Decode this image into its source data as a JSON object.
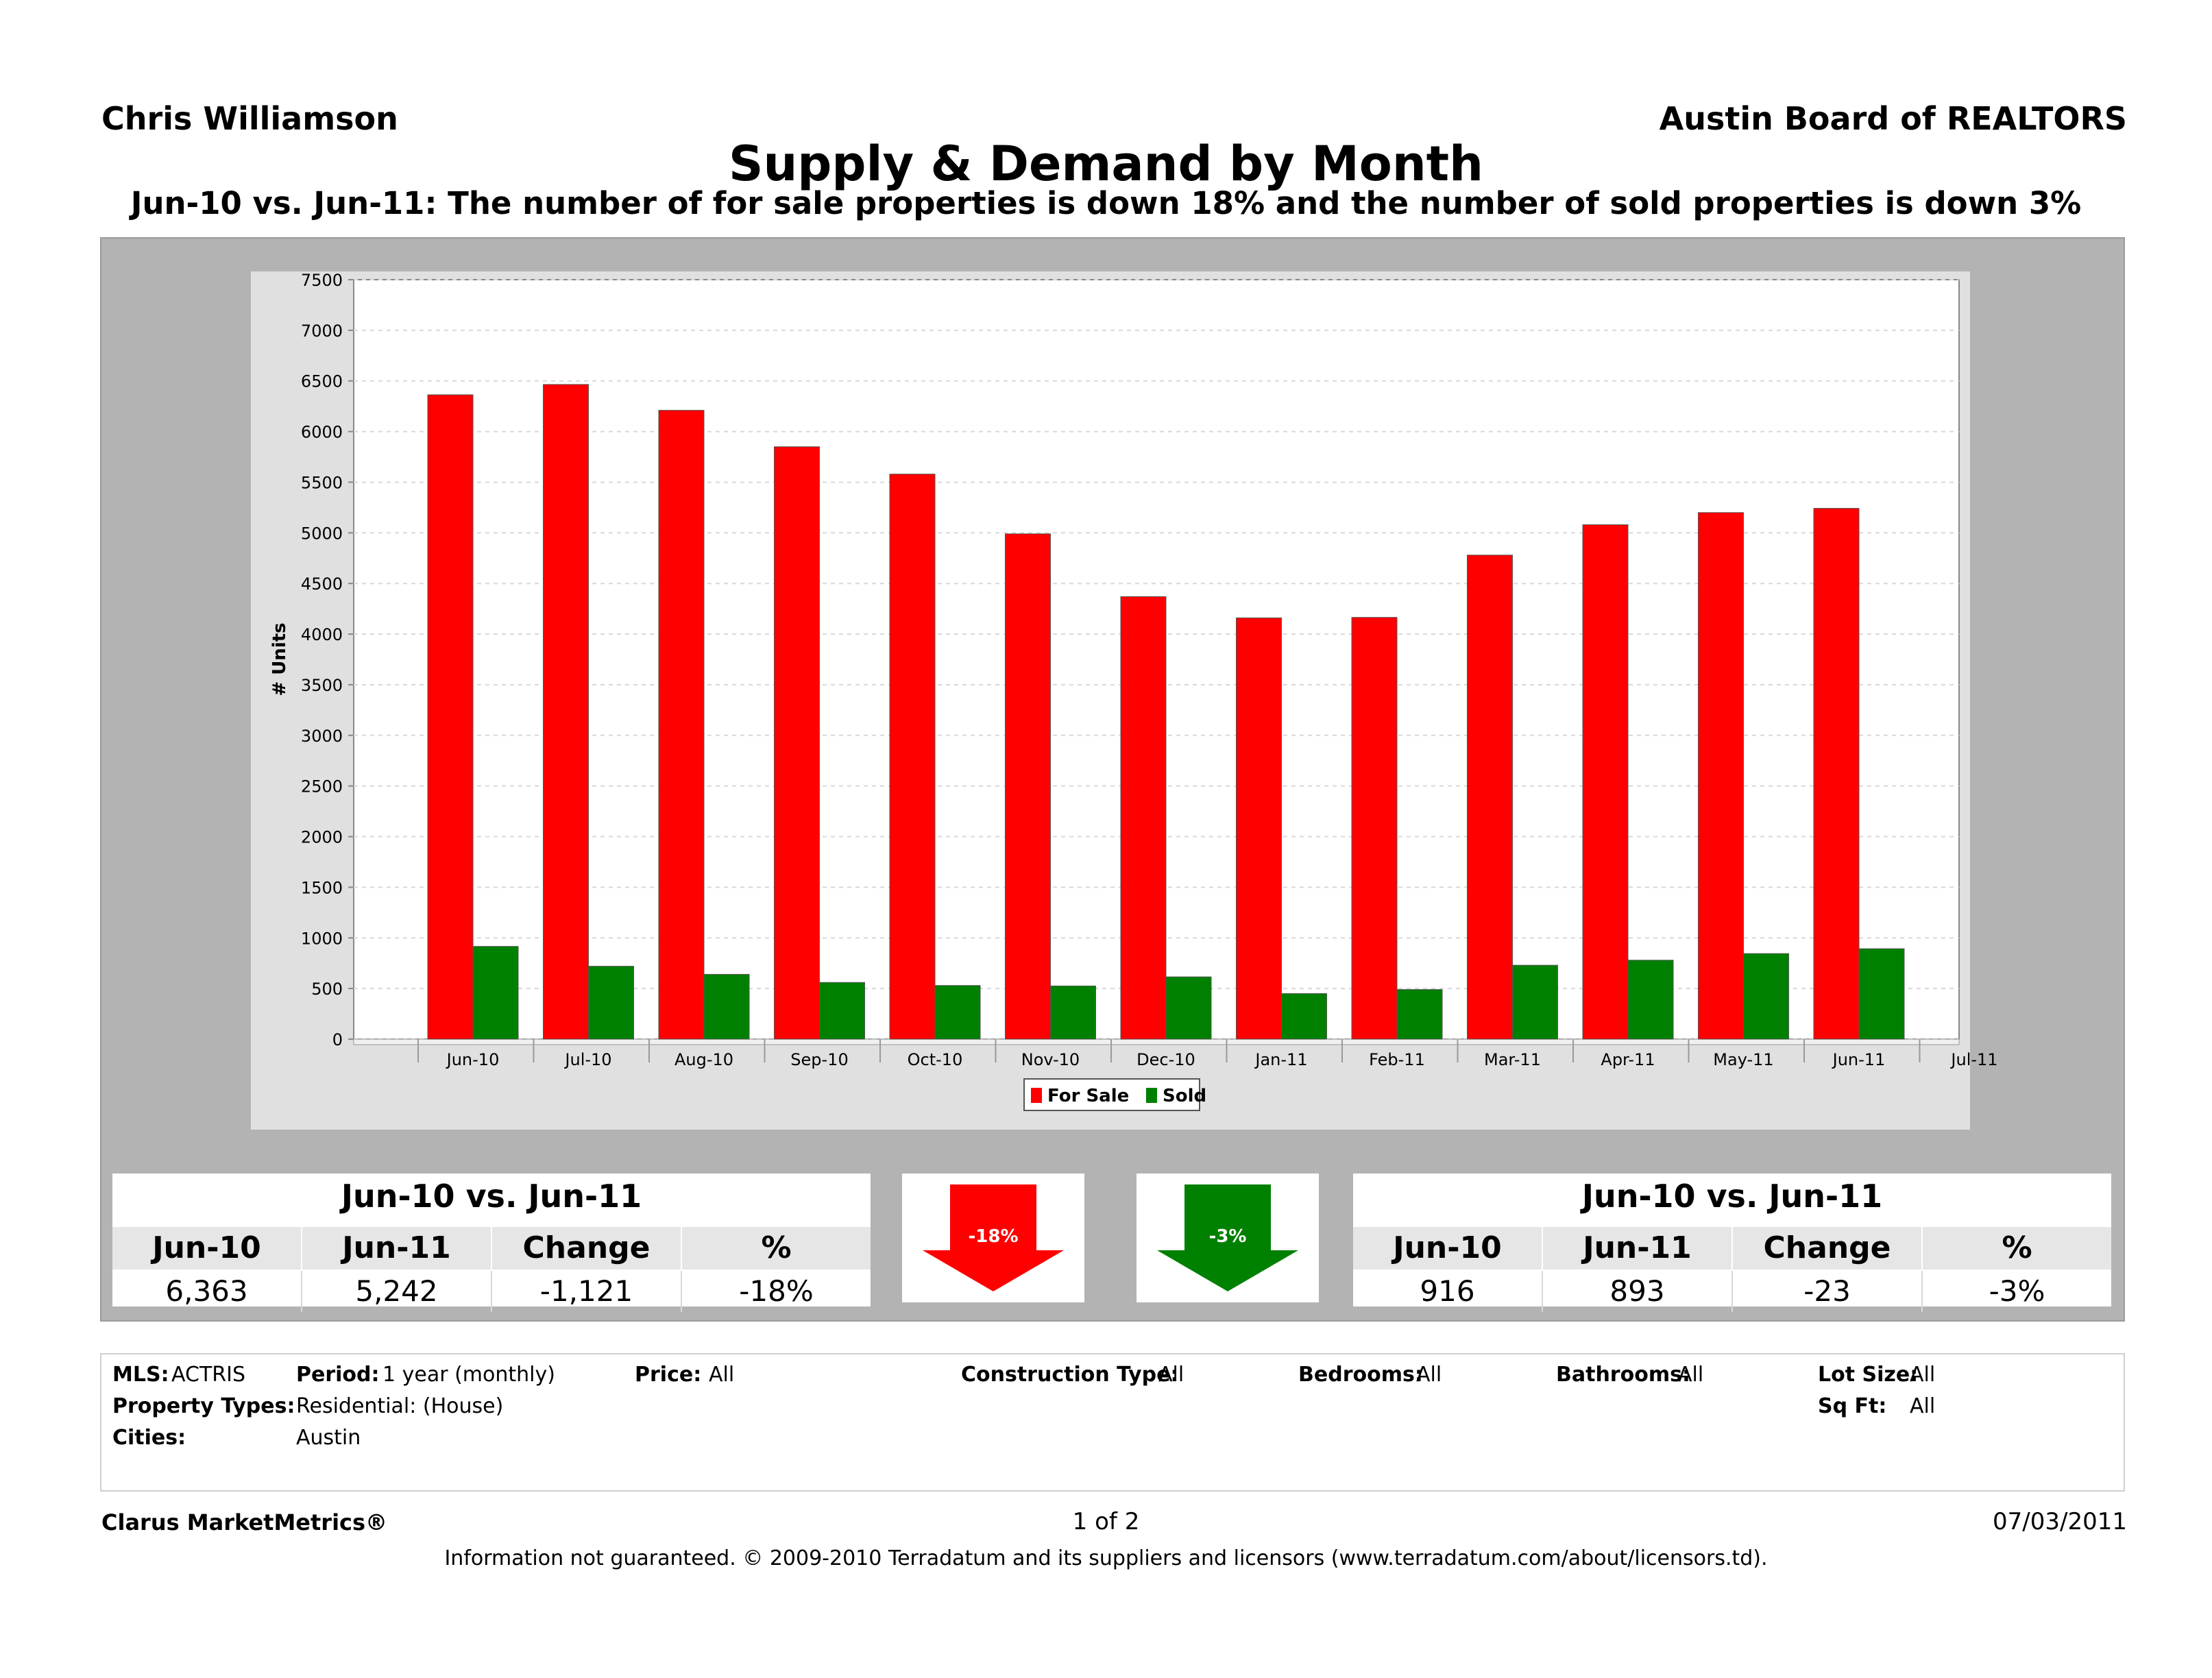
{
  "header": {
    "agent": "Chris Williamson",
    "board": "Austin Board of REALTORS",
    "title": "Supply & Demand by Month",
    "subtitle": "Jun-10 vs. Jun-11:  The number of for sale properties is down 18% and the number of sold properties is down 3%"
  },
  "chart_data": {
    "type": "bar",
    "ylabel": "# Units",
    "ylim": [
      0,
      7500
    ],
    "yticks": [
      0,
      500,
      1000,
      1500,
      2000,
      2500,
      3000,
      3500,
      4000,
      4500,
      5000,
      5500,
      6000,
      6500,
      7000,
      7500
    ],
    "categories": [
      "Jun-10",
      "Jul-10",
      "Aug-10",
      "Sep-10",
      "Oct-10",
      "Nov-10",
      "Dec-10",
      "Jan-11",
      "Feb-11",
      "Mar-11",
      "Apr-11",
      "May-11",
      "Jun-11",
      "Jul-11"
    ],
    "series": [
      {
        "name": "For Sale",
        "color": "#ff0000",
        "values": [
          6363,
          6465,
          6210,
          5850,
          5580,
          4990,
          4370,
          4160,
          4165,
          4780,
          5080,
          5200,
          5242,
          null
        ]
      },
      {
        "name": "Sold",
        "color": "#008000",
        "values": [
          916,
          720,
          640,
          560,
          530,
          525,
          615,
          450,
          490,
          730,
          780,
          845,
          893,
          null
        ]
      }
    ],
    "grid": true,
    "legend": "bottom-center"
  },
  "stats_left": {
    "title": "Jun-10 vs. Jun-11",
    "headers": [
      "Jun-10",
      "Jun-11",
      "Change",
      "%"
    ],
    "values": [
      "6,363",
      "5,242",
      "-1,121",
      "-18%"
    ]
  },
  "stats_right": {
    "title": "Jun-10 vs. Jun-11",
    "headers": [
      "Jun-10",
      "Jun-11",
      "Change",
      "%"
    ],
    "values": [
      "916",
      "893",
      "-23",
      "-3%"
    ]
  },
  "arrows": {
    "for_sale": {
      "label": "-18%",
      "color": "#ff0000",
      "direction": "down"
    },
    "sold": {
      "label": "-3%",
      "color": "#008000",
      "direction": "down"
    }
  },
  "filters": {
    "mls_label": "MLS:",
    "mls_value": "ACTRIS",
    "period_label": "Period:",
    "period_value": "1 year (monthly)",
    "price_label": "Price:",
    "price_value": "All",
    "construction_label": "Construction Type:",
    "construction_value": "All",
    "bedrooms_label": "Bedrooms:",
    "bedrooms_value": "All",
    "bathrooms_label": "Bathrooms:",
    "bathrooms_value": "All",
    "lotsize_label": "Lot Size:",
    "lotsize_value": "All",
    "proptypes_label": "Property Types:",
    "proptypes_value": "Residential: (House)",
    "sqft_label": "Sq Ft:",
    "sqft_value": "All",
    "cities_label": "Cities:",
    "cities_value": "Austin"
  },
  "footer": {
    "brand": "Clarus MarketMetrics®",
    "page": "1 of 2",
    "date": "07/03/2011",
    "disclaimer": "Information not guaranteed.  © 2009-2010 Terradatum and its suppliers and licensors (www.terradatum.com/about/licensors.td)."
  }
}
